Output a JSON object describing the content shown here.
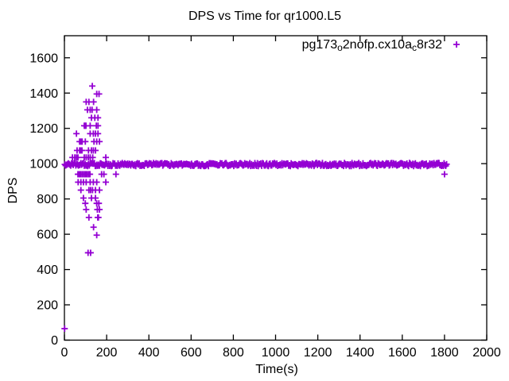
{
  "title": "DPS vs Time for qr1000.L5",
  "legend": {
    "plain_label": "pg173_o2nofp.cx10a_c8r32",
    "label_parts": [
      {
        "text": "pg173",
        "subscript": false
      },
      {
        "text": "o",
        "subscript": true
      },
      {
        "text": "2nofp.cx10a",
        "subscript": false
      },
      {
        "text": "c",
        "subscript": true
      },
      {
        "text": "8r32",
        "subscript": false
      }
    ],
    "marker": "plus",
    "position": "top-right-inside"
  },
  "chart_data": {
    "type": "scatter",
    "title": "DPS vs Time for qr1000.L5",
    "xlabel": "Time(s)",
    "ylabel": "DPS",
    "xlim": [
      0,
      2000
    ],
    "ylim": [
      0,
      1725
    ],
    "xticks": [
      0,
      200,
      400,
      600,
      800,
      1000,
      1200,
      1400,
      1600,
      1800,
      2000
    ],
    "yticks": [
      0,
      200,
      400,
      600,
      800,
      1000,
      1200,
      1400,
      1600
    ],
    "grid": false,
    "legend_position": "top-right-inside",
    "marker_style": "plus",
    "marker_color": "#9400D3",
    "series_name": "pg173_o2nofp.cx10a_c8r32",
    "steady_band": {
      "note": "dense run of overlapping plus markers forming a solid bar",
      "t_start": 2,
      "t_end": 1810,
      "t_step": 4,
      "dps_mean": 995,
      "dps_jitter": 9
    },
    "scatter_rows": [
      {
        "dps": 1440,
        "times": [
          132
        ]
      },
      {
        "dps": 1395,
        "times": [
          153,
          164
        ]
      },
      {
        "dps": 1350,
        "times": [
          103,
          116,
          138
        ]
      },
      {
        "dps": 1305,
        "times": [
          109,
          122,
          131,
          153
        ]
      },
      {
        "dps": 1260,
        "times": [
          128,
          144,
          159
        ]
      },
      {
        "dps": 1215,
        "times": [
          94,
          98,
          102,
          122,
          151,
          159
        ]
      },
      {
        "dps": 1170,
        "times": [
          57,
          122,
          137,
          147,
          159
        ]
      },
      {
        "dps": 1125,
        "times": [
          72,
          78,
          84,
          99,
          140,
          153,
          166
        ]
      },
      {
        "dps": 1075,
        "times": [
          60,
          72,
          77,
          83,
          114,
          128,
          137,
          147
        ]
      },
      {
        "dps": 1035,
        "times": [
          38,
          49,
          57,
          64,
          94,
          103,
          113,
          122,
          134,
          196
        ]
      },
      {
        "dps": 940,
        "times": [
          64,
          70,
          76,
          83,
          90,
          97,
          103,
          109,
          116,
          121,
          176,
          187,
          244,
          1800
        ]
      },
      {
        "dps": 895,
        "times": [
          65,
          78,
          90,
          103,
          122,
          137,
          153,
          196
        ]
      },
      {
        "dps": 850,
        "times": [
          78,
          116,
          124,
          133,
          147,
          166
        ]
      },
      {
        "dps": 805,
        "times": [
          90,
          128,
          147
        ]
      },
      {
        "dps": 775,
        "times": [
          99,
          153,
          163
        ]
      },
      {
        "dps": 740,
        "times": [
          103,
          156,
          166
        ]
      },
      {
        "dps": 695,
        "times": [
          116,
          158,
          161
        ]
      },
      {
        "dps": 640,
        "times": [
          138
        ]
      },
      {
        "dps": 595,
        "times": [
          153
        ]
      },
      {
        "dps": 495,
        "times": [
          112,
          124
        ]
      },
      {
        "dps": 65,
        "times": [
          1
        ]
      }
    ]
  }
}
